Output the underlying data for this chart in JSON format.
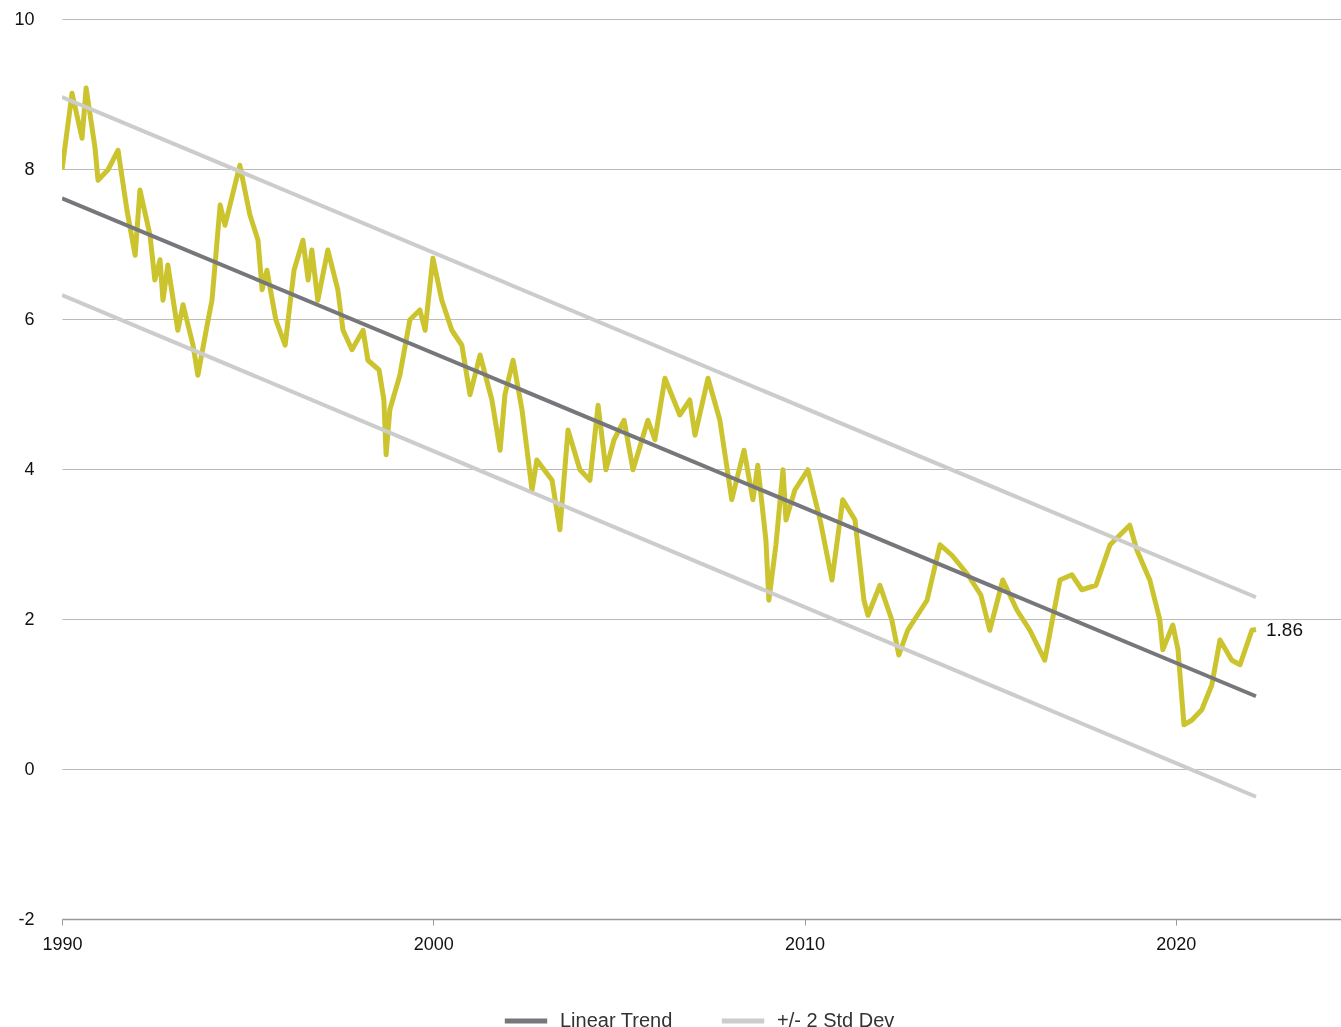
{
  "chart_data": {
    "type": "line",
    "xlim": [
      1990,
      2024.45
    ],
    "xticks": [
      1990,
      2000,
      2010,
      2020
    ],
    "ylim": [
      -2,
      10
    ],
    "yticks": [
      -2,
      0,
      2,
      4,
      6,
      8,
      10
    ],
    "grid": "y",
    "legend": "bottom",
    "annotations": [
      {
        "text": "1.86",
        "x": 2022.16,
        "y": 1.86
      }
    ],
    "series": [
      {
        "color": "#cbc42f",
        "x": [
          1990.0,
          1990.27,
          1990.54,
          1990.65,
          1990.89,
          1990.97,
          1991.24,
          1991.51,
          1991.75,
          1991.97,
          1992.1,
          1992.37,
          1992.5,
          1992.64,
          1992.72,
          1992.85,
          1993.12,
          1993.26,
          1993.53,
          1993.66,
          1993.91,
          1994.04,
          1994.26,
          1994.39,
          1994.79,
          1995.06,
          1995.28,
          1995.39,
          1995.52,
          1995.76,
          1996.01,
          1996.25,
          1996.49,
          1996.63,
          1996.73,
          1996.89,
          1997.16,
          1997.43,
          1997.57,
          1997.81,
          1998.11,
          1998.24,
          1998.54,
          1998.67,
          1998.73,
          1998.83,
          1999.1,
          1999.37,
          1999.64,
          1999.78,
          1999.99,
          2000.23,
          2000.5,
          2000.77,
          2000.99,
          2001.26,
          2001.58,
          2001.8,
          2001.93,
          2002.15,
          2002.39,
          2002.66,
          2002.79,
          2003.2,
          2003.41,
          2003.63,
          2003.95,
          2004.22,
          2004.44,
          2004.65,
          2004.87,
          2005.14,
          2005.38,
          2005.78,
          2005.97,
          2006.24,
          2006.64,
          2006.91,
          2007.05,
          2007.4,
          2007.72,
          2008.04,
          2008.37,
          2008.61,
          2008.74,
          2008.96,
          2009.04,
          2009.23,
          2009.42,
          2009.5,
          2009.74,
          2010.09,
          2010.42,
          2010.74,
          2011.03,
          2011.36,
          2011.6,
          2011.71,
          2012.03,
          2012.35,
          2012.54,
          2012.78,
          2013.3,
          2013.65,
          2013.97,
          2014.4,
          2014.75,
          2014.99,
          2015.34,
          2015.72,
          2016.07,
          2016.47,
          2016.88,
          2017.2,
          2017.47,
          2017.85,
          2018.23,
          2018.76,
          2018.95,
          2019.3,
          2019.57,
          2019.65,
          2019.92,
          2020.06,
          2020.22,
          2020.43,
          2020.7,
          2020.97,
          2021.19,
          2021.51,
          2021.73,
          2022.05,
          2022.16
        ],
        "values": [
          7.99,
          9.01,
          8.41,
          9.08,
          8.28,
          7.85,
          7.99,
          8.25,
          7.45,
          6.85,
          7.72,
          7.12,
          6.52,
          6.79,
          6.25,
          6.72,
          5.85,
          6.19,
          5.65,
          5.25,
          5.92,
          6.25,
          7.52,
          7.25,
          8.05,
          7.39,
          7.05,
          6.39,
          6.65,
          5.99,
          5.65,
          6.65,
          7.05,
          6.52,
          6.92,
          6.25,
          6.92,
          6.39,
          5.85,
          5.59,
          5.85,
          5.45,
          5.32,
          4.92,
          4.19,
          4.79,
          5.25,
          5.99,
          6.12,
          5.85,
          6.81,
          6.25,
          5.85,
          5.65,
          4.99,
          5.52,
          4.92,
          4.25,
          4.99,
          5.45,
          4.79,
          3.72,
          4.12,
          3.85,
          3.19,
          4.52,
          3.99,
          3.85,
          4.85,
          3.99,
          4.39,
          4.65,
          3.99,
          4.65,
          4.39,
          5.21,
          4.72,
          4.92,
          4.45,
          5.21,
          4.65,
          3.59,
          4.25,
          3.59,
          4.05,
          3.05,
          2.25,
          2.99,
          3.99,
          3.32,
          3.72,
          3.99,
          3.32,
          2.52,
          3.59,
          3.32,
          2.25,
          2.05,
          2.45,
          1.99,
          1.52,
          1.85,
          2.25,
          2.99,
          2.85,
          2.59,
          2.32,
          1.85,
          2.52,
          2.12,
          1.85,
          1.45,
          2.52,
          2.59,
          2.39,
          2.45,
          2.99,
          3.25,
          2.92,
          2.52,
          1.99,
          1.59,
          1.92,
          1.59,
          0.59,
          0.65,
          0.79,
          1.12,
          1.72,
          1.45,
          1.39,
          1.85,
          1.86
        ]
      },
      {
        "name": "Linear Trend",
        "color": "#76777b",
        "x": [
          1990,
          2022.16
        ],
        "values": [
          7.61,
          0.97
        ]
      },
      {
        "name": "+/- 2 Std Dev",
        "color": "#cccccc",
        "x": [
          1990,
          2022.16
        ],
        "values": [
          8.96,
          2.29
        ]
      },
      {
        "color": "#cccccc",
        "x": [
          1990,
          2022.16
        ],
        "values": [
          6.32,
          -0.37
        ]
      }
    ]
  }
}
